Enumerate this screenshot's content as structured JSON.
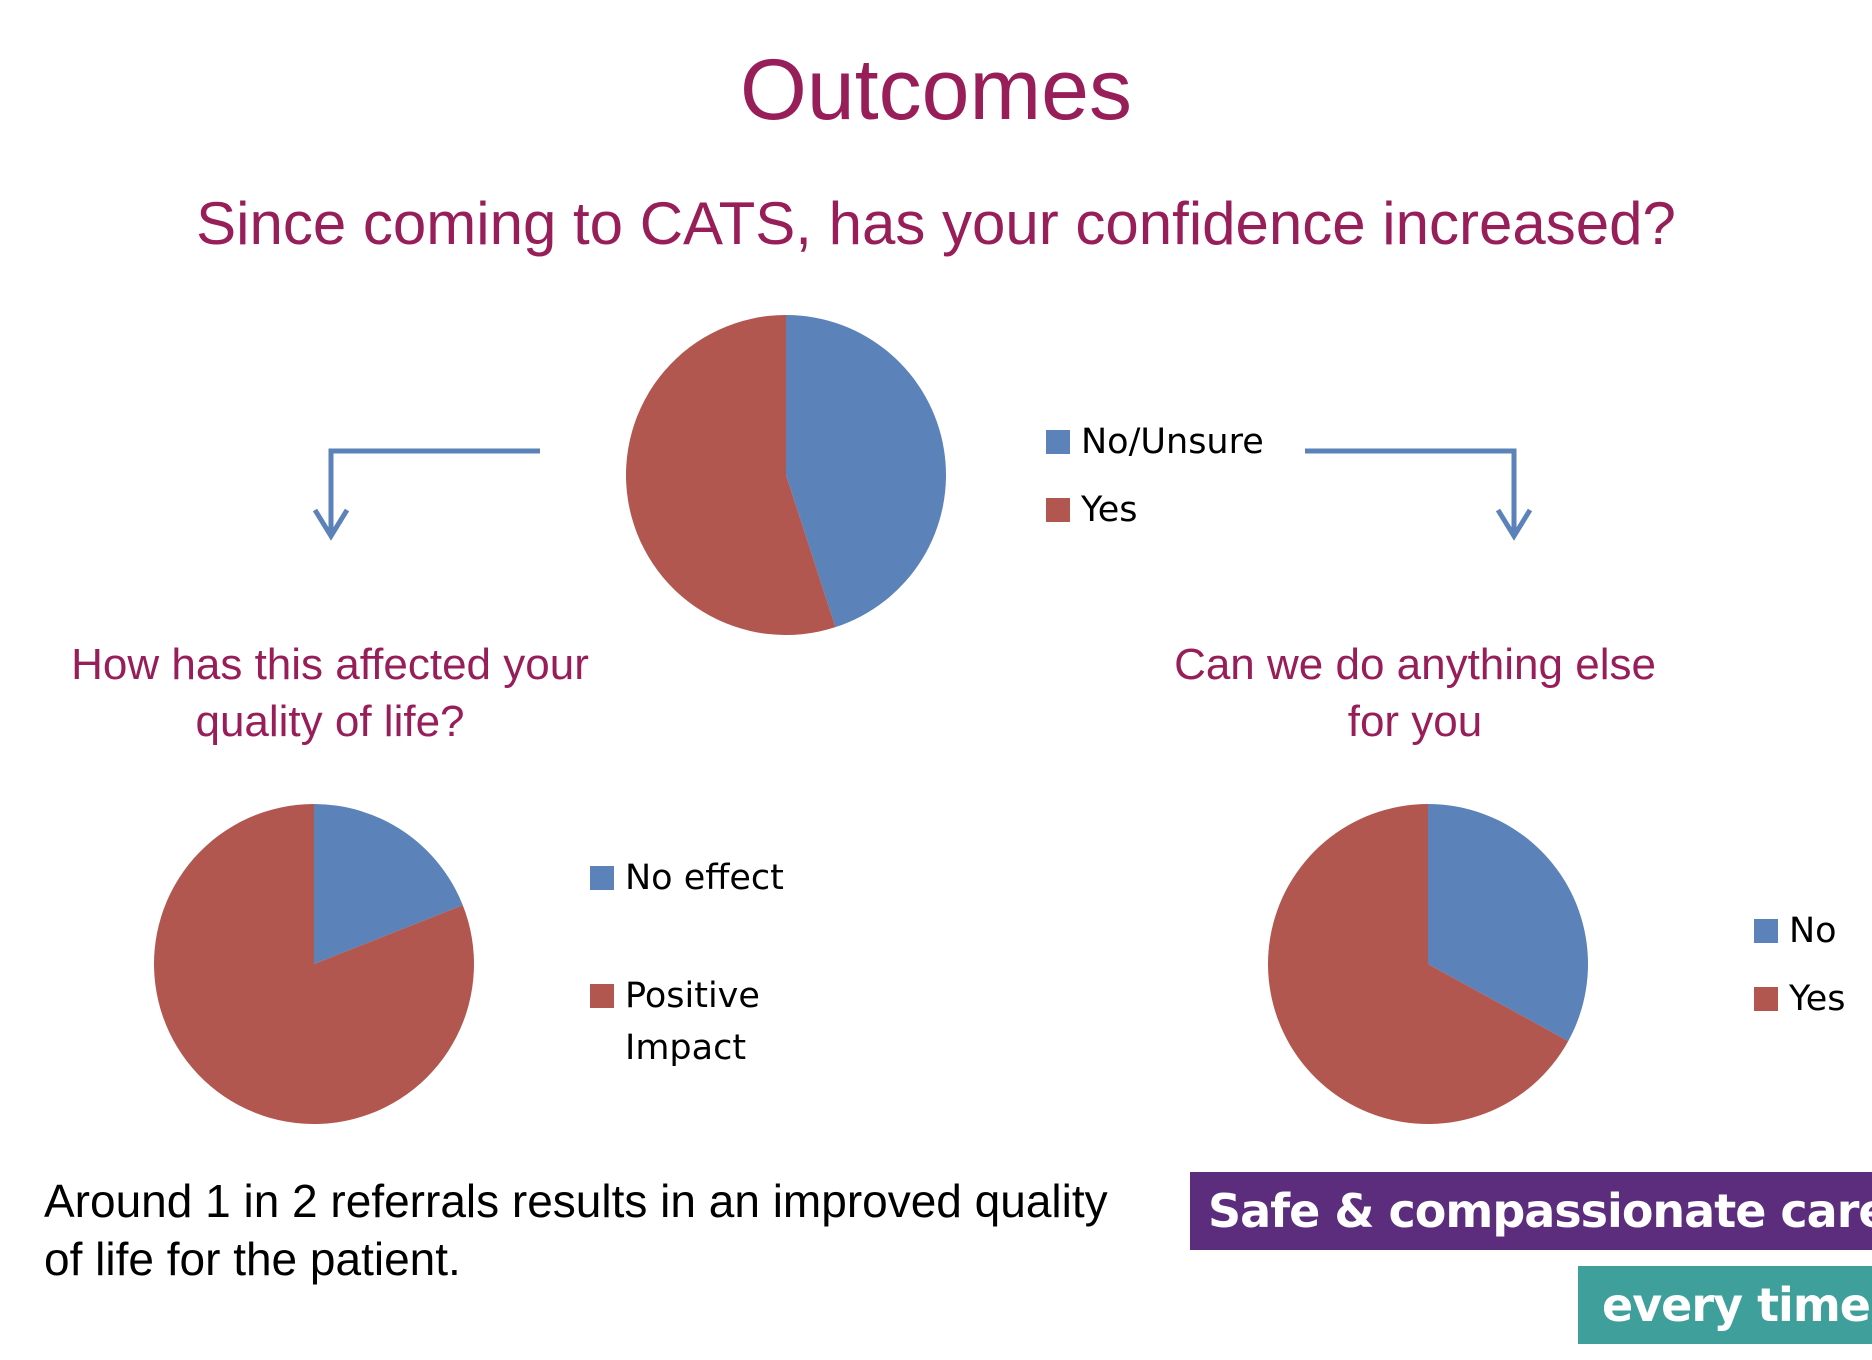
{
  "title": "Outcomes",
  "subtitle": "Since coming to CATS, has your confidence increased?",
  "colors": {
    "heading": "#981e5a",
    "blue": "#5b82b9",
    "red": "#b25650",
    "banner_purple": "#5c2d7c",
    "banner_teal": "#3f9f9b"
  },
  "left_question": {
    "line1": "How has this affected your",
    "line2": "quality of life?"
  },
  "right_question": {
    "line1": "Can we do anything else",
    "line2": "for you"
  },
  "footnote": {
    "line1": "Around 1 in 2 referrals results in an improved quality",
    "line2": "of life for the patient."
  },
  "banner": {
    "line1": "Safe & compassionate care,",
    "line2": "every time"
  },
  "chart_data": [
    {
      "type": "pie",
      "categories": [
        "No/Unsure",
        "Yes"
      ],
      "values": [
        45,
        55
      ],
      "legend_placement": "right",
      "legend": [
        "No/Unsure",
        "Yes"
      ]
    },
    {
      "type": "pie",
      "categories": [
        "No effect",
        "Positive Impact"
      ],
      "values": [
        19,
        81
      ],
      "legend_placement": "right",
      "legend": [
        "No effect",
        "Positive",
        "Impact"
      ]
    },
    {
      "type": "pie",
      "categories": [
        "No",
        "Yes"
      ],
      "values": [
        33,
        67
      ],
      "legend_placement": "right",
      "legend": [
        "No",
        "Yes"
      ]
    }
  ]
}
